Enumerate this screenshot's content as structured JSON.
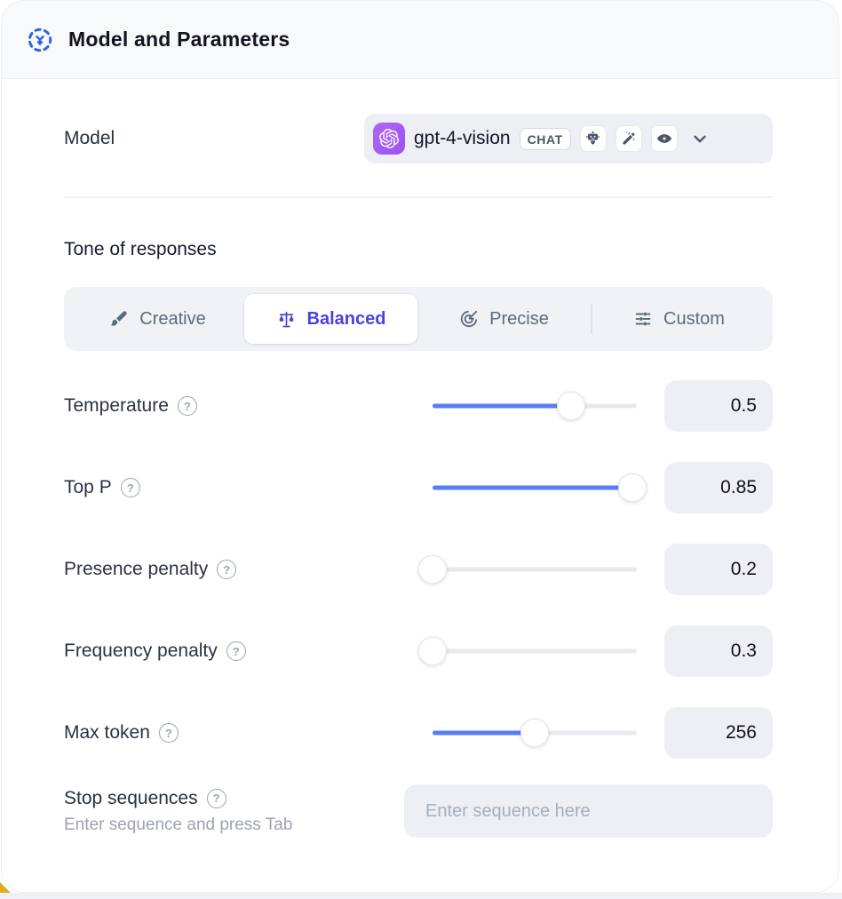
{
  "header": {
    "title": "Model and Parameters"
  },
  "model": {
    "label": "Model",
    "selected_model": "gpt-4-vision",
    "type_badge": "CHAT",
    "capability_icons": [
      "robot-icon",
      "magic-wand-icon",
      "vision-eye-icon"
    ],
    "provider_icon": "openai-logo"
  },
  "tone": {
    "heading": "Tone of responses",
    "tabs": [
      {
        "label": "Creative",
        "icon": "paintbrush-icon",
        "selected": false
      },
      {
        "label": "Balanced",
        "icon": "balance-scale-icon",
        "selected": true
      },
      {
        "label": "Precise",
        "icon": "target-arrow-icon",
        "selected": false
      },
      {
        "label": "Custom",
        "icon": "sliders-icon",
        "selected": false
      }
    ]
  },
  "parameters": [
    {
      "label": "Temperature",
      "value": "0.5",
      "slider_fill_pct": 68
    },
    {
      "label": "Top P",
      "value": "0.85",
      "slider_fill_pct": 98
    },
    {
      "label": "Presence penalty",
      "value": "0.2",
      "slider_fill_pct": 0
    },
    {
      "label": "Frequency penalty",
      "value": "0.3",
      "slider_fill_pct": 0
    },
    {
      "label": "Max token",
      "value": "256",
      "slider_fill_pct": 50
    }
  ],
  "help_glyph": "?",
  "stop_sequences": {
    "label": "Stop sequences",
    "hint": "Enter sequence and press Tab",
    "placeholder": "Enter sequence here"
  },
  "colors": {
    "accent_indigo": "#4a42dd",
    "slider_blue": "#5b7cf7",
    "provider_chip_purple": "#a158f2",
    "header_icon_blue": "#2f63e8",
    "header_bg": "#f8f9fb",
    "control_bg": "#edeff4",
    "corner_accent_yellow": "#dfae1f"
  }
}
